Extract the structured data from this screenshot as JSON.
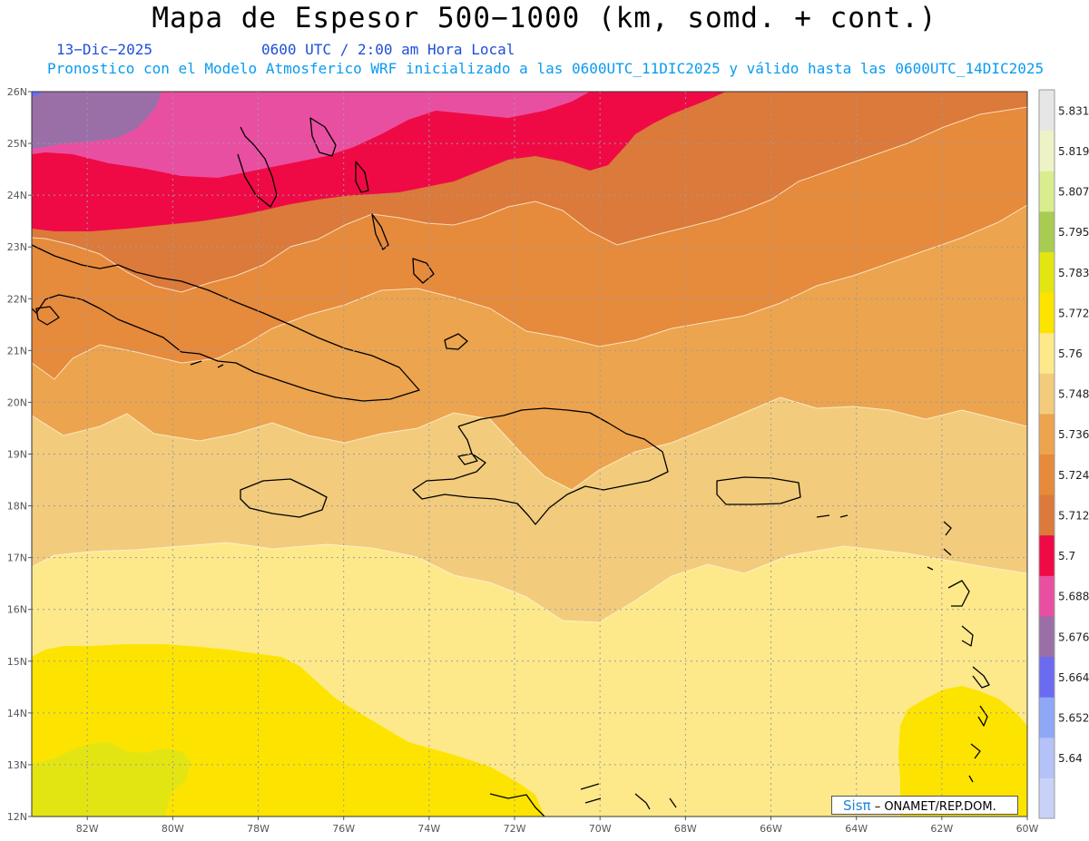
{
  "header": {
    "title": "Mapa de Espesor 500−1000 (km, somd. + cont.)",
    "date": "13−Dic−2025",
    "time": "0600 UTC / 2:00 am Hora Local",
    "run": "Pronostico con el Modelo Atmosferico WRF inicializado a las 0600UTC_11DIC2025 y válido hasta las  0600UTC_14DIC2025"
  },
  "axes": {
    "lat_labels": [
      "26N",
      "25N",
      "24N",
      "23N",
      "22N",
      "21N",
      "20N",
      "19N",
      "18N",
      "17N",
      "16N",
      "15N",
      "14N",
      "13N",
      "12N"
    ],
    "lon_labels": [
      "82W",
      "80W",
      "78W",
      "76W",
      "74W",
      "72W",
      "70W",
      "68W",
      "66W",
      "64W",
      "62W",
      "60W"
    ],
    "lat_range": [
      12,
      26
    ],
    "lon_range": [
      -83.3,
      -60
    ]
  },
  "colorbar": {
    "levels": [
      "5.64",
      "5.652",
      "5.664",
      "5.676",
      "5.688",
      "5.7",
      "5.712",
      "5.724",
      "5.736",
      "5.748",
      "5.76",
      "5.772",
      "5.783",
      "5.795",
      "5.807",
      "5.819",
      "5.831"
    ],
    "colors": [
      "#c8d2f8",
      "#b4c2f8",
      "#8ea8f7",
      "#6b6bf2",
      "#9a6fa8",
      "#e94fa0",
      "#ef0a46",
      "#db7a3a",
      "#e68a3c",
      "#eca44e",
      "#f2cc7c",
      "#fde98a",
      "#fde400",
      "#e3e513",
      "#a8cc52",
      "#d8ee8e",
      "#eef3c6",
      "#e6e6e6"
    ]
  },
  "credit": {
    "logo": "Sisπ",
    "org": "– ONAMET/REP.DOM."
  }
}
